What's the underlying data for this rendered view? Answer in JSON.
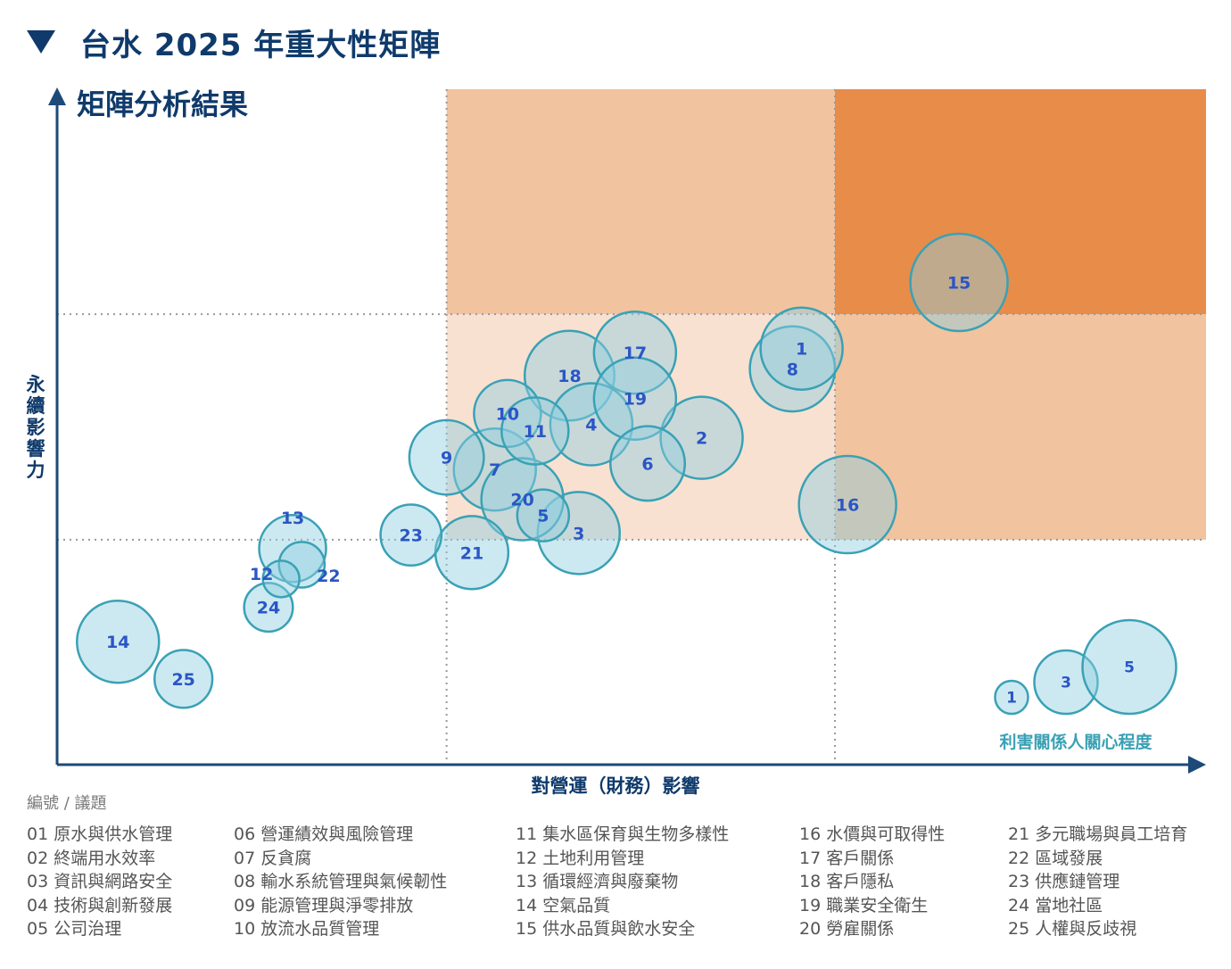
{
  "header": {
    "title": "台水 2025 年重大性矩陣"
  },
  "chart_data": {
    "type": "scatter",
    "title": "矩陣分析結果",
    "xlabel": "對營運（財務）影響",
    "ylabel": "永續影響力",
    "bubble_size_label": "利害關係人關心程度",
    "size_legend": [
      1,
      3,
      5
    ],
    "colors": {
      "axis": "#1d4a78",
      "bubble_fill": "#8ecfdf",
      "bubble_stroke": "#3aa1b5",
      "label": "#2a56c6",
      "zone_high": "#e88c4a",
      "zone_mid": "#f1c39f",
      "zone_low": "#f8e1d1",
      "grid": "#999999"
    },
    "xlim": [
      0,
      100
    ],
    "ylim": [
      0,
      100
    ],
    "thresholds": {
      "x": [
        33.9,
        67.7
      ],
      "y": [
        33.3,
        66.7
      ]
    },
    "points": [
      {
        "id": "1",
        "x": 64.8,
        "y": 61.6,
        "size": 4
      },
      {
        "id": "2",
        "x": 56.1,
        "y": 48.4,
        "size": 4
      },
      {
        "id": "3",
        "x": 45.4,
        "y": 34.3,
        "size": 4
      },
      {
        "id": "4",
        "x": 46.5,
        "y": 50.4,
        "size": 4
      },
      {
        "id": "5",
        "x": 42.3,
        "y": 36.9,
        "size": 2
      },
      {
        "id": "6",
        "x": 51.4,
        "y": 44.6,
        "size": 3.5
      },
      {
        "id": "7",
        "x": 38.1,
        "y": 43.7,
        "size": 4
      },
      {
        "id": "8",
        "x": 64.0,
        "y": 58.6,
        "size": 4.2
      },
      {
        "id": "9",
        "x": 33.9,
        "y": 45.5,
        "size": 3.5
      },
      {
        "id": "10",
        "x": 39.2,
        "y": 52.0,
        "size": 3
      },
      {
        "id": "11",
        "x": 41.6,
        "y": 49.4,
        "size": 3
      },
      {
        "id": "12",
        "x": 19.5,
        "y": 27.5,
        "size": 1
      },
      {
        "id": "13",
        "x": 20.5,
        "y": 32.0,
        "size": 3
      },
      {
        "id": "14",
        "x": 5.3,
        "y": 18.2,
        "size": 4
      },
      {
        "id": "15",
        "x": 78.5,
        "y": 71.4,
        "size": 5
      },
      {
        "id": "16",
        "x": 68.8,
        "y": 38.5,
        "size": 5
      },
      {
        "id": "17",
        "x": 50.3,
        "y": 61.0,
        "size": 4
      },
      {
        "id": "18",
        "x": 44.6,
        "y": 57.6,
        "size": 4.5
      },
      {
        "id": "19",
        "x": 50.3,
        "y": 54.2,
        "size": 4
      },
      {
        "id": "20",
        "x": 40.5,
        "y": 39.3,
        "size": 4
      },
      {
        "id": "21",
        "x": 36.1,
        "y": 31.4,
        "size": 3.4
      },
      {
        "id": "22",
        "x": 21.3,
        "y": 29.6,
        "size": 1.6
      },
      {
        "id": "23",
        "x": 30.8,
        "y": 34.0,
        "size": 2.6
      },
      {
        "id": "24",
        "x": 18.4,
        "y": 23.3,
        "size": 1.8
      },
      {
        "id": "25",
        "x": 11.0,
        "y": 12.7,
        "size": 2.4
      }
    ]
  },
  "legend": {
    "heading": "編號 / 議題",
    "columns": [
      [
        "01 原水與供水管理",
        "02 終端用水效率",
        "03 資訊與網路安全",
        "04 技術與創新發展",
        "05 公司治理"
      ],
      [
        "06 營運績效與風險管理",
        "07 反貪腐",
        "08 輸水系統管理與氣候韌性",
        "09 能源管理與淨零排放",
        "10 放流水品質管理"
      ],
      [
        "11 集水區保育與生物多樣性",
        "12 土地利用管理",
        "13 循環經濟與廢棄物",
        "14 空氣品質",
        "15 供水品質與飲水安全"
      ],
      [
        "16 水價與可取得性",
        "17 客戶關係",
        "18 客戶隱私",
        "19 職業安全衛生",
        "20 勞雇關係"
      ],
      [
        "21 多元職場與員工培育",
        "22 區域發展",
        "23 供應鏈管理",
        "24 當地社區",
        "25 人權與反歧視"
      ]
    ]
  }
}
